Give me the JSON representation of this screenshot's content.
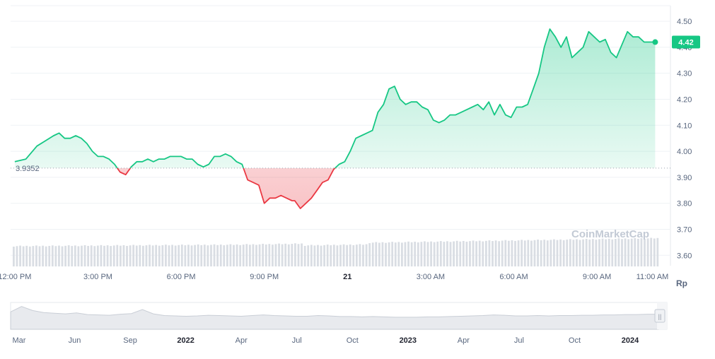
{
  "chart_data": {
    "type": "line",
    "currency_unit": "Rp",
    "watermark": "CoinMarketCap",
    "y_ticks": [
      "4.50",
      "4.40",
      "4.30",
      "4.20",
      "4.10",
      "4.00",
      "3.90",
      "3.80",
      "3.70",
      "3.60"
    ],
    "ylim": [
      3.56,
      4.56
    ],
    "x_ticks": [
      {
        "label": "12:00 PM",
        "hour": 0,
        "bold": false
      },
      {
        "label": "3:00 PM",
        "hour": 3,
        "bold": false
      },
      {
        "label": "6:00 PM",
        "hour": 6,
        "bold": false
      },
      {
        "label": "9:00 PM",
        "hour": 9,
        "bold": false
      },
      {
        "label": "21",
        "hour": 12,
        "bold": true
      },
      {
        "label": "3:00 AM",
        "hour": 15,
        "bold": false
      },
      {
        "label": "6:00 AM",
        "hour": 18,
        "bold": false
      },
      {
        "label": "9:00 AM",
        "hour": 21,
        "bold": false
      },
      {
        "label": "11:00 AM",
        "hour": 23,
        "bold": false
      }
    ],
    "xlim_hours": [
      -0.15,
      23.65
    ],
    "baseline": {
      "value": 3.9352,
      "label": "3.9352"
    },
    "current": {
      "value": 4.42,
      "label": "4.42"
    },
    "colors": {
      "up": "#16c784",
      "down": "#ea3943",
      "baseline_label": "#58667e",
      "volume": "#d9dde3"
    },
    "series": [
      {
        "x_hours": [
          0.0,
          0.4,
          0.8,
          1.1,
          1.4,
          1.6,
          1.8,
          2.0,
          2.2,
          2.4,
          2.6,
          2.8,
          3.0,
          3.2,
          3.4,
          3.6,
          3.8,
          4.0,
          4.2,
          4.4,
          4.6,
          4.8,
          5.0,
          5.2,
          5.4,
          5.6,
          5.8,
          5.9,
          6.0,
          6.2,
          6.4,
          6.6,
          6.8,
          7.0,
          7.2,
          7.4,
          7.6,
          7.8,
          8.0,
          8.2,
          8.4,
          8.6,
          8.8,
          9.0,
          9.2,
          9.4,
          9.6,
          9.8,
          10.0,
          10.1,
          10.3,
          10.5,
          10.7,
          10.9,
          11.1,
          11.3,
          11.5,
          11.7,
          11.9,
          12.1,
          12.3,
          12.5,
          12.7,
          12.9,
          13.1,
          13.3,
          13.5,
          13.7,
          13.9,
          14.1,
          14.3,
          14.5,
          14.7,
          14.9,
          15.1,
          15.3,
          15.5,
          15.7,
          15.9,
          16.1,
          16.3,
          16.5,
          16.7,
          16.9,
          17.1,
          17.3,
          17.5,
          17.7,
          17.9,
          18.1,
          18.3,
          18.5,
          18.7,
          18.9,
          19.1,
          19.3,
          19.5,
          19.7,
          19.9,
          20.1,
          20.3,
          20.5,
          20.7,
          20.9,
          21.1,
          21.3,
          21.5,
          21.7,
          21.9,
          22.1,
          22.3,
          22.5,
          22.7,
          22.9,
          23.1
        ],
        "values": [
          3.96,
          3.97,
          4.02,
          4.04,
          4.06,
          4.07,
          4.05,
          4.05,
          4.06,
          4.05,
          4.03,
          4.0,
          3.98,
          3.98,
          3.97,
          3.95,
          3.92,
          3.91,
          3.94,
          3.96,
          3.96,
          3.97,
          3.96,
          3.97,
          3.97,
          3.98,
          3.98,
          3.98,
          3.98,
          3.97,
          3.97,
          3.95,
          3.94,
          3.95,
          3.98,
          3.98,
          3.99,
          3.98,
          3.96,
          3.95,
          3.89,
          3.88,
          3.87,
          3.8,
          3.82,
          3.82,
          3.83,
          3.82,
          3.81,
          3.81,
          3.78,
          3.8,
          3.82,
          3.85,
          3.88,
          3.89,
          3.93,
          3.95,
          3.96,
          4.0,
          4.05,
          4.06,
          4.07,
          4.08,
          4.15,
          4.18,
          4.24,
          4.25,
          4.2,
          4.18,
          4.19,
          4.19,
          4.17,
          4.16,
          4.12,
          4.11,
          4.12,
          4.14,
          4.14,
          4.15,
          4.16,
          4.17,
          4.18,
          4.16,
          4.19,
          4.14,
          4.18,
          4.14,
          4.13,
          4.17,
          4.17,
          4.18,
          4.24,
          4.3,
          4.4,
          4.47,
          4.44,
          4.4,
          4.44,
          4.36,
          4.38,
          4.4,
          4.46,
          4.44,
          4.42,
          4.43,
          4.38,
          4.36,
          4.41,
          4.46,
          4.44,
          4.44,
          4.42,
          4.42,
          4.42
        ]
      }
    ],
    "navigator": {
      "labels": [
        {
          "label": "Mar",
          "bold": false
        },
        {
          "label": "Jun",
          "bold": false
        },
        {
          "label": "Sep",
          "bold": false
        },
        {
          "label": "2022",
          "bold": true
        },
        {
          "label": "Apr",
          "bold": false
        },
        {
          "label": "Jul",
          "bold": false
        },
        {
          "label": "Oct",
          "bold": false
        },
        {
          "label": "2023",
          "bold": true
        },
        {
          "label": "Apr",
          "bold": false
        },
        {
          "label": "Jul",
          "bold": false
        },
        {
          "label": "Oct",
          "bold": false
        },
        {
          "label": "2024",
          "bold": true
        }
      ],
      "values": [
        5.2,
        6.8,
        5.6,
        5.0,
        4.8,
        4.6,
        4.9,
        4.4,
        4.3,
        4.2,
        4.5,
        4.7,
        5.9,
        4.6,
        4.1,
        4.0,
        3.9,
        4.0,
        4.2,
        4.1,
        4.0,
        3.9,
        4.1,
        4.3,
        4.1,
        4.0,
        3.9,
        3.9,
        4.1,
        4.0,
        3.8,
        3.8,
        3.7,
        3.8,
        3.7,
        3.6,
        3.6,
        3.6,
        3.7,
        3.7,
        3.8,
        3.9,
        4.0,
        4.1,
        4.3,
        4.2,
        4.0,
        4.0,
        4.1,
        4.0,
        4.1,
        4.1,
        4.2,
        4.2,
        4.3,
        4.3,
        4.4,
        4.4,
        4.5,
        4.5
      ],
      "handle": "||"
    }
  }
}
